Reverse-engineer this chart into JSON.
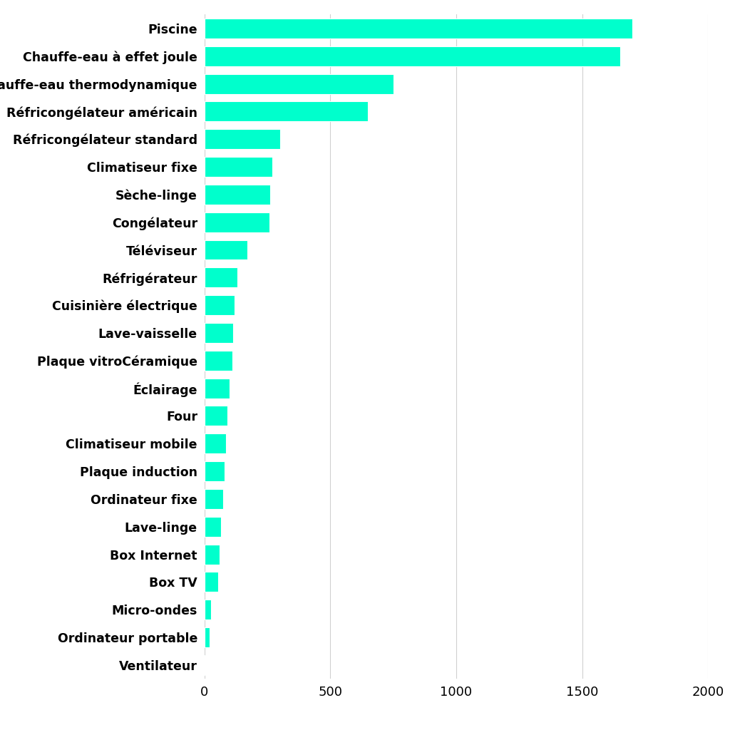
{
  "categories": [
    "Piscine",
    "Chauffe-eau à effet joule",
    "Chauffe-eau thermodynamique",
    "Réfricongélateur américain",
    "Réfricongélateur standard",
    "Climatiseur fixe",
    "Sèche-linge",
    "Congélateur",
    "Téléviseur",
    "Réfrigérateur",
    "Cuisinière électrique",
    "Lave-vaisselle",
    "Plaque vitroCéramique",
    "Éclairage",
    "Four",
    "Climatiseur mobile",
    "Plaque induction",
    "Ordinateur fixe",
    "Lave-linge",
    "Box Internet",
    "Box TV",
    "Micro-ondes",
    "Ordinateur portable",
    "Ventilateur"
  ],
  "values": [
    1700,
    1650,
    750,
    650,
    300,
    270,
    260,
    258,
    170,
    130,
    120,
    115,
    110,
    100,
    90,
    85,
    80,
    75,
    65,
    60,
    55,
    25,
    20,
    5
  ],
  "bar_color": "#00FFCC",
  "background_color": "#ffffff",
  "xlim": [
    0,
    2000
  ],
  "xticks": [
    0,
    500,
    1000,
    1500,
    2000
  ],
  "label_fontsize": 12.5,
  "tick_fontsize": 13,
  "bar_edge_color": "white"
}
